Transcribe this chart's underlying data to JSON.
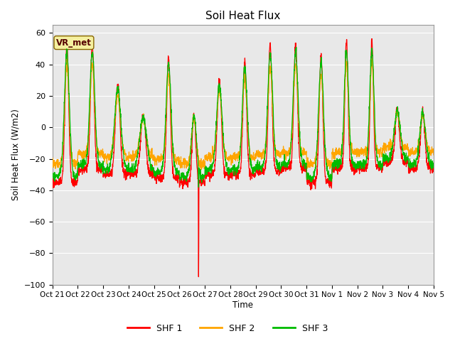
{
  "title": "Soil Heat Flux",
  "ylabel": "Soil Heat Flux (W/m2)",
  "xlabel": "Time",
  "ylim": [
    -100,
    65
  ],
  "background_color": "#e8e8e8",
  "figure_background": "#ffffff",
  "grid_color": "#ffffff",
  "annotation_text": "VR_met",
  "annotation_fc": "#f5f0a0",
  "annotation_ec": "#886600",
  "line_colors": [
    "#ff0000",
    "#ffa500",
    "#00bb00"
  ],
  "legend_labels": [
    "SHF 1",
    "SHF 2",
    "SHF 3"
  ],
  "xtick_labels": [
    "Oct 21",
    "Oct 22",
    "Oct 23",
    "Oct 24",
    "Oct 25",
    "Oct 26",
    "Oct 27",
    "Oct 28",
    "Oct 29",
    "Oct 30",
    "Oct 31",
    "Nov 1",
    "Nov 2",
    "Nov 3",
    "Nov 4",
    "Nov 5"
  ],
  "n_days": 15,
  "points_per_day": 144
}
